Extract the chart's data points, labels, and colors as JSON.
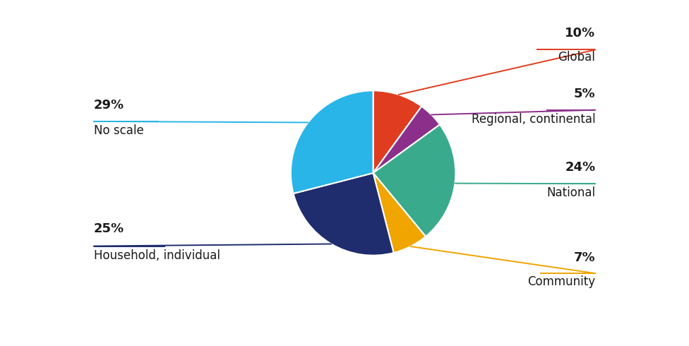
{
  "slices": [
    {
      "label": "Global",
      "pct": 10,
      "color": "#e03c1f",
      "line_color": "#e03c1f"
    },
    {
      "label": "Regional, continental",
      "pct": 5,
      "color": "#8b2f8a",
      "line_color": "#8b2f8a"
    },
    {
      "label": "National",
      "pct": 24,
      "color": "#3aaa8c",
      "line_color": "#3aaa8c"
    },
    {
      "label": "Community",
      "pct": 7,
      "color": "#f0a500",
      "line_color": "#f0a500"
    },
    {
      "label": "Household, individual",
      "pct": 25,
      "color": "#1f2d6e",
      "line_color": "#1f2d6e"
    },
    {
      "label": "No scale",
      "pct": 29,
      "color": "#29b5e8",
      "line_color": "#29b5e8"
    }
  ],
  "label_fontsize": 12,
  "pct_fontsize": 13,
  "background_color": "#ffffff",
  "start_angle": 90
}
